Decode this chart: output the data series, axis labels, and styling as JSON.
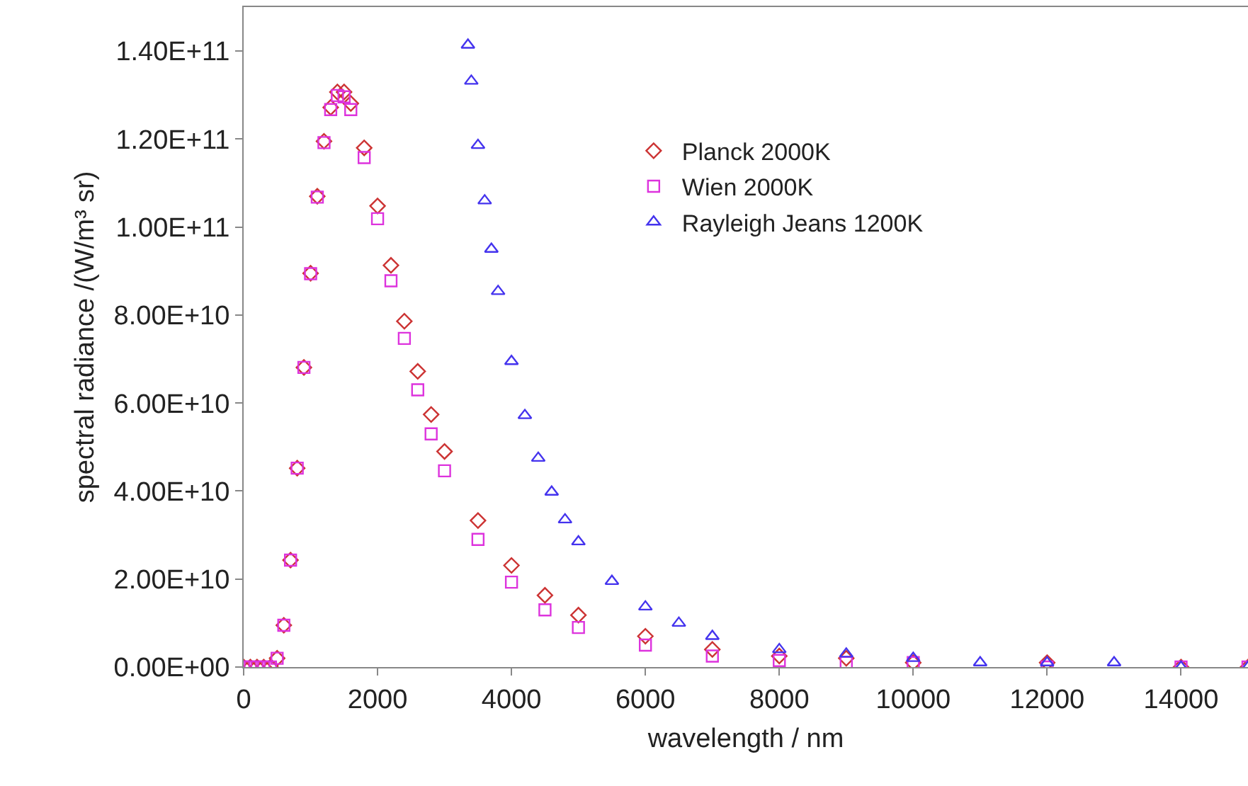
{
  "chart_data": {
    "type": "scatter",
    "xlabel": "wavelength / nm",
    "ylabel": "spectral radiance /(W/m³ sr)",
    "xlim": [
      0,
      15000
    ],
    "xticks": [
      0,
      2000,
      4000,
      6000,
      8000,
      10000,
      12000,
      14000
    ],
    "ylim": [
      0,
      150000000000.0
    ],
    "yticks": [
      {
        "value": 0,
        "label": "0.00E+00"
      },
      {
        "value": 20000000000.0,
        "label": "2.00E+10"
      },
      {
        "value": 40000000000.0,
        "label": "4.00E+10"
      },
      {
        "value": 60000000000.0,
        "label": "6.00E+10"
      },
      {
        "value": 80000000000.0,
        "label": "8.00E+10"
      },
      {
        "value": 100000000000.0,
        "label": "1.00E+11"
      },
      {
        "value": 120000000000.0,
        "label": "1.20E+11"
      },
      {
        "value": 140000000000.0,
        "label": "1.40E+11"
      }
    ],
    "grid": false,
    "legend": "top right",
    "series": [
      {
        "name": "Planck 2000K",
        "color": "#cc3333",
        "marker": "diamond",
        "x": [
          0,
          100,
          200,
          300,
          400,
          500,
          600,
          700,
          800,
          900,
          1000,
          1100,
          1200,
          1300,
          1400,
          1500,
          1600,
          1800,
          2000,
          2200,
          2400,
          2600,
          2800,
          3000,
          3500,
          4000,
          4500,
          5000,
          6000,
          7000,
          8000,
          9000,
          10000,
          12000,
          14000,
          15000
        ],
        "values": [
          0,
          0,
          0,
          0,
          0,
          2000000000.0,
          9500000000.0,
          24300000000.0,
          45200000000.0,
          68100000000.0,
          89500000000.0,
          107000000000.0,
          119500000000.0,
          127200000000.0,
          130700000000.0,
          130700000000.0,
          128100000000.0,
          118000000000.0,
          104800000000.0,
          91300000000.0,
          78600000000.0,
          67200000000.0,
          57400000000.0,
          49000000000.0,
          33300000000.0,
          23100000000.0,
          16300000000.0,
          11800000000.0,
          7000000000.0,
          4000000000.0,
          2500000000.0,
          2000000000.0,
          1000000000.0,
          1000000000.0,
          0,
          0
        ]
      },
      {
        "name": "Wien 2000K",
        "color": "#dd33dd",
        "marker": "square",
        "x": [
          0,
          100,
          200,
          300,
          400,
          500,
          600,
          700,
          800,
          900,
          1000,
          1100,
          1200,
          1300,
          1400,
          1500,
          1600,
          1800,
          2000,
          2200,
          2400,
          2600,
          2800,
          3000,
          3500,
          4000,
          4500,
          5000,
          6000,
          7000,
          8000,
          9000,
          10000,
          12000,
          14000,
          15000
        ],
        "values": [
          0,
          0,
          0,
          0,
          0,
          2000000000.0,
          9500000000.0,
          24300000000.0,
          45200000000.0,
          68100000000.0,
          89400000000.0,
          106800000000.0,
          119200000000.0,
          126700000000.0,
          129900000000.0,
          129600000000.0,
          126700000000.0,
          115800000000.0,
          101900000000.0,
          87800000000.0,
          74700000000.0,
          63000000000.0,
          53000000000.0,
          44600000000.0,
          29000000000.0,
          19300000000.0,
          13000000000.0,
          9000000000.0,
          5000000000.0,
          2500000000.0,
          1500000000.0,
          1000000000.0,
          1000000000.0,
          0,
          0,
          0
        ]
      },
      {
        "name": "Rayleigh Jeans 1200K",
        "color": "#4433ee",
        "marker": "triangle",
        "x": [
          3350,
          3400,
          3500,
          3600,
          3700,
          3800,
          4000,
          4200,
          4400,
          4600,
          4800,
          5000,
          5500,
          6000,
          6500,
          7000,
          8000,
          9000,
          10000,
          11000,
          12000,
          13000,
          14000,
          15000
        ],
        "values": [
          141400000000.0,
          133200000000.0,
          118600000000.0,
          106000000000.0,
          95000000000.0,
          85400000000.0,
          69500000000.0,
          57200000000.0,
          47500000000.0,
          39800000000.0,
          33500000000.0,
          28500000000.0,
          19500000000.0,
          13700000000.0,
          10000000000.0,
          7000000000.0,
          4000000000.0,
          3000000000.0,
          2000000000.0,
          1000000000.0,
          1000000000.0,
          1000000000.0,
          0,
          0
        ]
      }
    ]
  }
}
